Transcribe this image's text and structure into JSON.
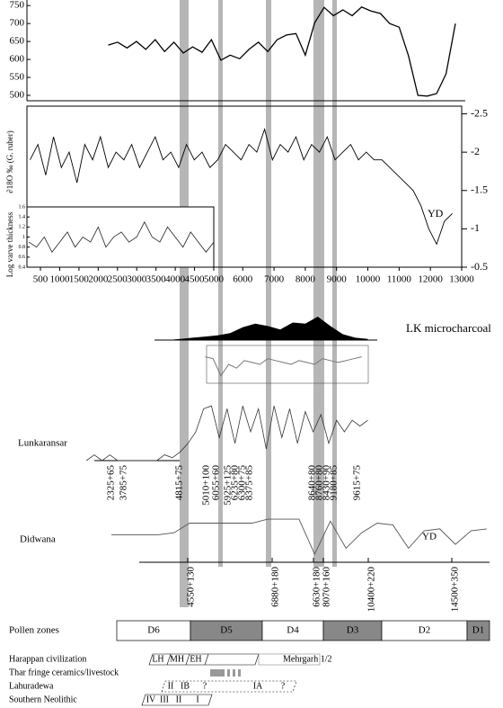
{
  "chart_data": [
    {
      "type": "line",
      "color": "#000000",
      "x": [
        1700,
        2000,
        2300,
        2600,
        2900,
        3200,
        3500,
        3800,
        4100,
        4400,
        4700,
        5000,
        5300,
        5600,
        5900,
        6200,
        6500,
        6800,
        7100,
        7400,
        7700,
        8000,
        8300,
        8600,
        8900,
        9200,
        9500,
        9800,
        10100,
        10400,
        10700,
        11000,
        11300,
        11600,
        11900,
        12200,
        12500,
        12800
      ],
      "values": [
        640,
        648,
        632,
        650,
        628,
        655,
        622,
        648,
        618,
        635,
        620,
        655,
        598,
        612,
        602,
        628,
        648,
        622,
        655,
        668,
        672,
        612,
        702,
        745,
        722,
        738,
        722,
        746,
        735,
        728,
        700,
        690,
        610,
        500,
        498,
        505,
        560,
        700
      ],
      "ylim": [
        485,
        758
      ],
      "yticks": [
        500,
        550,
        600,
        650,
        700,
        750
      ]
    },
    {
      "type": "line",
      "color": "#000000",
      "ylabel": "∂18O ‰ (G. ruber)",
      "annotation": "YD",
      "yaxis_side": "right",
      "x": [
        -800,
        -550,
        -300,
        -50,
        200,
        450,
        700,
        950,
        1200,
        1450,
        1700,
        1950,
        2200,
        2450,
        2700,
        2950,
        3200,
        3450,
        3700,
        3950,
        4200,
        4450,
        4700,
        4950,
        5200,
        5450,
        5700,
        5950,
        6200,
        6450,
        6700,
        6950,
        7200,
        7450,
        7700,
        7950,
        8200,
        8450,
        8700,
        8950,
        9200,
        9450,
        9700,
        9950,
        10200,
        10450,
        10700,
        10950,
        11200,
        11450,
        11700,
        11950,
        12200,
        12450,
        12700
      ],
      "values": [
        -1.9,
        -2.1,
        -1.7,
        -2.2,
        -1.8,
        -2.0,
        -1.6,
        -2.1,
        -1.9,
        -2.2,
        -1.8,
        -2.0,
        -1.9,
        -2.1,
        -1.8,
        -2.0,
        -2.2,
        -1.9,
        -2.0,
        -1.8,
        -2.1,
        -1.9,
        -2.0,
        -1.8,
        -1.9,
        -2.1,
        -2.0,
        -1.9,
        -2.1,
        -2.0,
        -2.3,
        -1.9,
        -2.1,
        -2.0,
        -2.2,
        -1.9,
        -2.1,
        -2.0,
        -2.2,
        -1.9,
        -2.0,
        -2.1,
        -1.9,
        -2.0,
        -1.9,
        -1.9,
        -1.8,
        -1.7,
        -1.6,
        -1.5,
        -1.3,
        -1.0,
        -0.8,
        -1.1,
        -1.2
      ],
      "xlim": [
        -900,
        13000
      ],
      "xticks": [
        6000,
        7000,
        8000,
        9000,
        10000,
        11000,
        12000,
        13000
      ],
      "ylim": [
        -2.6,
        -0.5
      ],
      "yticks": [
        -2.5,
        -2.0,
        -1.5,
        -1.0,
        -0.5
      ]
    },
    {
      "type": "line",
      "color": "#222222",
      "ylabel": "Log varve thickness",
      "x": [
        200,
        400,
        600,
        800,
        1000,
        1200,
        1400,
        1600,
        1800,
        2000,
        2200,
        2400,
        2600,
        2800,
        3000,
        3200,
        3400,
        3600,
        3800,
        4000,
        4200,
        4400,
        4600,
        4800,
        5000
      ],
      "values": [
        0.9,
        0.8,
        1.0,
        0.7,
        0.9,
        1.1,
        0.8,
        1.0,
        0.9,
        1.2,
        0.8,
        1.0,
        1.1,
        0.9,
        1.0,
        1.3,
        1.0,
        0.9,
        1.2,
        1.0,
        0.8,
        1.1,
        0.9,
        0.7,
        0.9
      ],
      "xlim": [
        150,
        5000
      ],
      "xticks": [
        500,
        1000,
        1500,
        2000,
        2500,
        3000,
        3500,
        4000,
        4500,
        5000
      ],
      "ylim": [
        0.4,
        1.6
      ],
      "yticks": [
        0.4,
        0.6,
        0.8,
        1,
        1.2,
        1.4,
        1.6
      ]
    },
    {
      "type": "area",
      "color": "#000000",
      "title": "LK microcharcoal",
      "x": [
        3200,
        3600,
        4000,
        4400,
        4800,
        5200,
        5600,
        6000,
        6400,
        6800,
        7200,
        7600,
        8000,
        8400,
        8800,
        9200,
        9600,
        10000
      ],
      "values": [
        0,
        0,
        0.05,
        0.1,
        0.15,
        0.2,
        0.3,
        0.55,
        0.7,
        0.6,
        0.45,
        0.75,
        0.7,
        1.0,
        0.6,
        0.25,
        0.1,
        0.05
      ],
      "ylim": [
        0,
        1
      ]
    },
    {
      "type": "line",
      "color": "#777777",
      "x": [
        4800,
        5050,
        5300,
        5550,
        5800,
        6050,
        6300,
        6550,
        6800,
        7050,
        7300,
        7550,
        7800,
        8050,
        8300,
        8550,
        8800,
        9050,
        9300,
        9550,
        9800
      ],
      "values": [
        0.7,
        0.65,
        0.2,
        0.5,
        0.4,
        0.6,
        0.55,
        0.5,
        0.65,
        0.6,
        0.55,
        0.5,
        0.6,
        0.55,
        0.5,
        0.65,
        0.6,
        0.55,
        0.6,
        0.65,
        0.7
      ],
      "ylim": [
        0,
        1
      ]
    },
    {
      "type": "line",
      "color": "#333333",
      "title": "Lunkaransar",
      "x": [
        1000,
        1250,
        1500,
        1750,
        2000,
        2250,
        2500,
        2750,
        3000,
        3250,
        3500,
        3750,
        4000,
        4250,
        4500,
        4750,
        5000,
        5250,
        5500,
        5750,
        6000,
        6250,
        6500,
        6750,
        7000,
        7250,
        7500,
        7750,
        8000,
        8250,
        8500,
        8750,
        9000,
        9250,
        9500,
        9750,
        10000
      ],
      "values": [
        0,
        0.1,
        0,
        0.1,
        0,
        0,
        0,
        0,
        0,
        0,
        0.1,
        0.05,
        0.15,
        0.3,
        0.5,
        0.9,
        0.95,
        0.4,
        0.9,
        0.3,
        0.95,
        0.5,
        0.9,
        0.2,
        0.95,
        0.4,
        0.9,
        0.3,
        0.85,
        0.5,
        0.8,
        0.3,
        0.7,
        0.5,
        0.7,
        0.6,
        0.7
      ],
      "ylim": [
        0,
        1
      ]
    },
    {
      "type": "line",
      "color": "#555555",
      "title": "Didwana",
      "annotation": "YD",
      "x": [
        1800,
        2300,
        2800,
        3300,
        3800,
        4300,
        4800,
        5300,
        5800,
        6300,
        6800,
        7300,
        7800,
        8300,
        8800,
        9300,
        9800,
        10300,
        10800,
        11300,
        11800,
        12300,
        12800,
        13300,
        13800
      ],
      "values": [
        0.55,
        0.55,
        0.55,
        0.55,
        0.6,
        0.85,
        0.85,
        0.85,
        0.85,
        0.85,
        0.95,
        0.95,
        0.95,
        0.05,
        0.9,
        0.2,
        0.6,
        0.85,
        0.8,
        0.2,
        0.65,
        0.7,
        0.3,
        0.65,
        0.7
      ],
      "ylim": [
        0,
        1
      ]
    }
  ],
  "lunkaransar_dates": [
    "2325+65",
    "3785+75",
    "4815+75",
    "5010+100",
    "6055+60",
    "5925+125",
    "6235+80",
    "6300+75",
    "8375+85",
    "8640+80",
    "8760+80",
    "8430+90",
    "9180+85",
    "9615+75"
  ],
  "didwana_dates": [
    "4550+130",
    "6880+180",
    "6630+180",
    "8070+160",
    "10400+220",
    "14500+350"
  ],
  "pollen_zones": {
    "label": "Pollen zones",
    "zones": [
      "D6",
      "D5",
      "D4",
      "D3",
      "D2",
      "D1"
    ]
  },
  "cultures": [
    {
      "name": "Harappan civilization",
      "phases": [
        "LH",
        "MH",
        "EH",
        "Mehrgarh 1/2"
      ]
    },
    {
      "name": "Thar fringe ceramics/livestock",
      "phases": []
    },
    {
      "name": "Lahuradewa",
      "phases": [
        "II",
        "IB",
        "?",
        "IA",
        "?"
      ]
    },
    {
      "name": "Southern Neolithic",
      "phases": [
        "IV",
        "III",
        "II",
        "I"
      ]
    }
  ]
}
